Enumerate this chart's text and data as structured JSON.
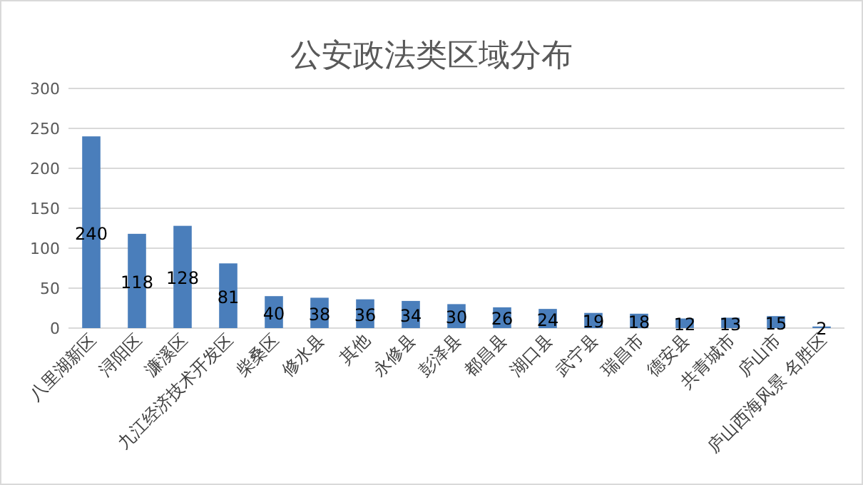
{
  "chart_data": {
    "type": "bar",
    "title": "公安政法类区域分布",
    "categories": [
      "八里湖新区",
      "浔阳区",
      "濂溪区",
      "九江经济技术开发区",
      "柴桑区",
      "修水县",
      "其他",
      "永修县",
      "彭泽县",
      "都昌县",
      "湖口县",
      "武宁县",
      "瑞昌市",
      "德安县",
      "共青城市",
      "庐山市",
      "庐山西海风景 名胜区"
    ],
    "values": [
      240,
      118,
      128,
      81,
      40,
      38,
      36,
      34,
      30,
      26,
      24,
      19,
      18,
      12,
      13,
      15,
      2
    ],
    "color": "#4a7ebb",
    "ylim": [
      0,
      300
    ],
    "yticks": [
      0,
      50,
      100,
      150,
      200,
      250,
      300
    ],
    "grid": "y",
    "data_labels": true
  }
}
